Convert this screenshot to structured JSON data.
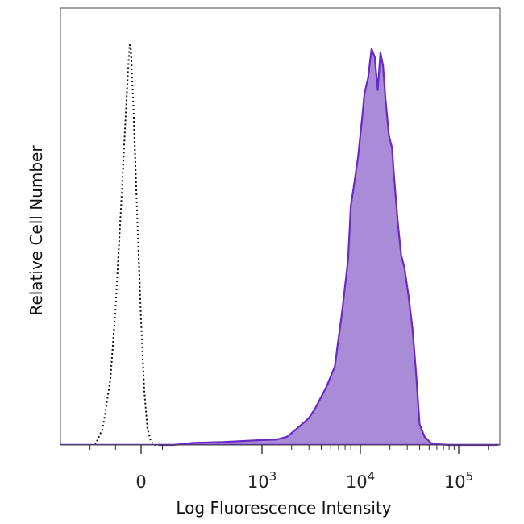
{
  "chart_data": {
    "type": "area",
    "xlabel": "Log Fluorescence Intensity",
    "ylabel": "Relative Cell Number",
    "x_scale": "biexponential",
    "xlim": [
      -300,
      250000
    ],
    "ylim": [
      0,
      1.0
    ],
    "grid": false,
    "colors": {
      "stained_fill": "#a98bd8",
      "stained_line": "#6a2bc4",
      "control_line": "#111111"
    },
    "x_tick_labels": [
      {
        "value": 0,
        "base": "0",
        "exp": ""
      },
      {
        "value": 1000,
        "base": "10",
        "exp": "3"
      },
      {
        "value": 10000,
        "base": "10",
        "exp": "4"
      },
      {
        "value": 100000,
        "base": "10",
        "exp": "5"
      }
    ],
    "series": [
      {
        "style": "dotted-outline",
        "x": [
          -180,
          -150,
          -120,
          -100,
          -80,
          -60,
          -50,
          -45,
          -40,
          -30,
          -15,
          0,
          15,
          30,
          45,
          60,
          70
        ],
        "y": [
          0.0,
          0.04,
          0.16,
          0.33,
          0.56,
          0.8,
          0.92,
          0.97,
          0.96,
          0.82,
          0.55,
          0.3,
          0.13,
          0.04,
          0.01,
          0.0,
          0.0
        ]
      },
      {
        "style": "filled",
        "x": [
          80,
          150,
          300,
          600,
          1000,
          1400,
          1800,
          2400,
          3000,
          3500,
          4500,
          5500,
          6500,
          7500,
          8000,
          8500,
          9500,
          10500,
          11000,
          12000,
          13000,
          14000,
          15000,
          16000,
          17000,
          18000,
          19500,
          21000,
          22000,
          24000,
          26000,
          28000,
          31000,
          34000,
          37000,
          40000,
          45000,
          52000,
          60000,
          80000,
          120000,
          250000
        ],
        "y": [
          0.0,
          0.0,
          0.005,
          0.007,
          0.012,
          0.013,
          0.02,
          0.045,
          0.065,
          0.09,
          0.14,
          0.19,
          0.32,
          0.45,
          0.58,
          0.62,
          0.7,
          0.8,
          0.85,
          0.89,
          0.96,
          0.94,
          0.86,
          0.95,
          0.92,
          0.84,
          0.75,
          0.72,
          0.65,
          0.54,
          0.46,
          0.43,
          0.36,
          0.28,
          0.17,
          0.05,
          0.02,
          0.005,
          0.002,
          0.0,
          0.0,
          0.0
        ]
      }
    ]
  }
}
